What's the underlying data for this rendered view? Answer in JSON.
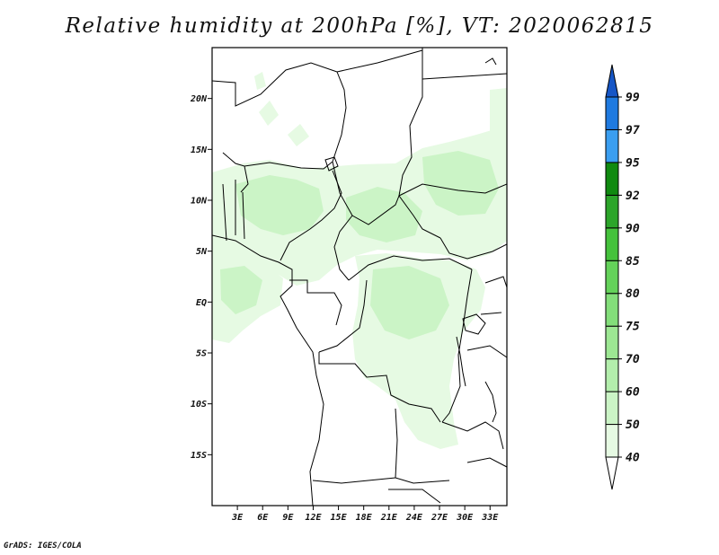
{
  "title": "Relative humidity at 200hPa [%], VT: 2020062815",
  "credit": "GrADS: IGES/COLA",
  "map": {
    "lon_range": [
      0,
      35
    ],
    "lat_range": [
      -20,
      25
    ],
    "lat_ticks": [
      {
        "value": 20,
        "label": "20N"
      },
      {
        "value": 15,
        "label": "15N"
      },
      {
        "value": 10,
        "label": "10N"
      },
      {
        "value": 5,
        "label": "5N"
      },
      {
        "value": 0,
        "label": "EQ"
      },
      {
        "value": -5,
        "label": "5S"
      },
      {
        "value": -10,
        "label": "10S"
      },
      {
        "value": -15,
        "label": "15S"
      }
    ],
    "lon_ticks": [
      {
        "value": 3,
        "label": "3E"
      },
      {
        "value": 6,
        "label": "6E"
      },
      {
        "value": 9,
        "label": "9E"
      },
      {
        "value": 12,
        "label": "12E"
      },
      {
        "value": 15,
        "label": "15E"
      },
      {
        "value": 18,
        "label": "18E"
      },
      {
        "value": 21,
        "label": "21E"
      },
      {
        "value": 24,
        "label": "24E"
      },
      {
        "value": 27,
        "label": "27E"
      },
      {
        "value": 30,
        "label": "30E"
      },
      {
        "value": 33,
        "label": "33E"
      }
    ]
  },
  "colorbar": {
    "levels": [
      "40",
      "50",
      "60",
      "70",
      "75",
      "80",
      "85",
      "90",
      "92",
      "95",
      "97",
      "99"
    ],
    "colors": [
      "#ffffff",
      "#e6fae3",
      "#cbf4c6",
      "#b3eeac",
      "#9de793",
      "#83de7a",
      "#64d25a",
      "#45c23c",
      "#2ca52a",
      "#108a10",
      "#3a9ef0",
      "#1f7ae0",
      "#1656c6"
    ]
  },
  "colors": {
    "humid_light": "#e6fae3",
    "humid_medium": "#cbf4c6",
    "humid_strong": "#b3eeac",
    "border": "#000000"
  }
}
